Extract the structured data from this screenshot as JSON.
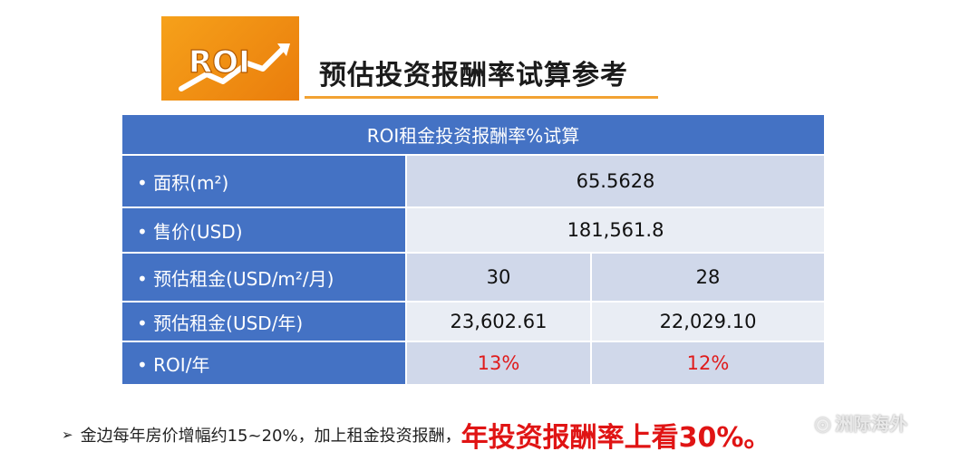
{
  "logo_text": "ROI",
  "title": "预估投资报酬率试算参考",
  "table": {
    "header": "ROI租金投资报酬率%试算",
    "rows": [
      {
        "label": "• 面积(m²)",
        "value": "65.5628"
      },
      {
        "label": "• 售价(USD)",
        "value": "181,561.8"
      },
      {
        "label": "• 预估租金(USD/m²/月)",
        "values": [
          "30",
          "28"
        ]
      },
      {
        "label": "• 预估租金(USD/年)",
        "values": [
          "23,602.61",
          "22,029.10"
        ]
      },
      {
        "label": "• ROI/年",
        "values": [
          "13%",
          "12%"
        ]
      }
    ]
  },
  "footer": {
    "arrow": "➢",
    "text": "金边每年房价增幅约15~20%，加上租金投资报酬，",
    "emphasis": "年投资报酬率上看30%。"
  },
  "watermark": {
    "icon": "wechat-icon",
    "text": "洲际海外"
  },
  "colors": {
    "table_blue": "#4472c4",
    "emphasis_red": "#e01414",
    "logo_orange": "#f39418"
  }
}
